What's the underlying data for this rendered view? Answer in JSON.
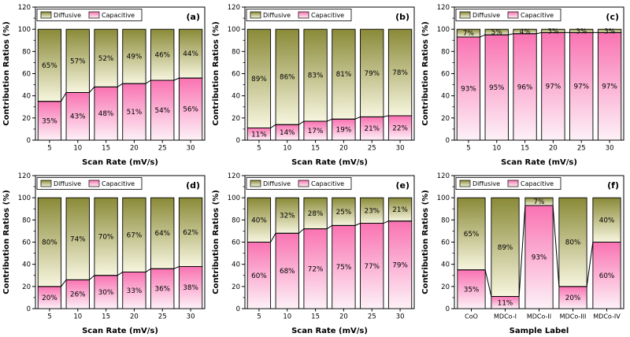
{
  "figure": {
    "ylabel": "Contribution Ratios (%)",
    "yticks": [
      0,
      20,
      40,
      60,
      80,
      100,
      120
    ],
    "legend": [
      {
        "key": "diffusive",
        "label": "Diffusive"
      },
      {
        "key": "capacitive",
        "label": "Capacitive"
      }
    ],
    "colors": {
      "diffusive_top": "#8a8a38",
      "diffusive_bottom": "#f7f6df",
      "capacitive_top": "#f973b2",
      "capacitive_bottom": "#fdf1f7",
      "frame": "#000000"
    }
  },
  "chart_data": [
    {
      "type": "bar",
      "stacked": true,
      "panel_label": "(a)",
      "xlabel": "Scan Rate (mV/s)",
      "ylabel": "Contribution Ratios (%)",
      "ylim": [
        0,
        120
      ],
      "categories": [
        "5",
        "10",
        "15",
        "20",
        "25",
        "30"
      ],
      "series": [
        {
          "name": "Capacitive",
          "values": [
            35,
            43,
            48,
            51,
            54,
            56
          ]
        },
        {
          "name": "Diffusive",
          "values": [
            65,
            57,
            52,
            49,
            46,
            44
          ]
        }
      ],
      "legend_position": "top-left-inside",
      "grid": false
    },
    {
      "type": "bar",
      "stacked": true,
      "panel_label": "(b)",
      "xlabel": "Scan Rate (mV/s)",
      "ylabel": "Contribution Ratios (%)",
      "ylim": [
        0,
        120
      ],
      "categories": [
        "5",
        "10",
        "15",
        "20",
        "25",
        "30"
      ],
      "series": [
        {
          "name": "Capacitive",
          "values": [
            11,
            14,
            17,
            19,
            21,
            22
          ]
        },
        {
          "name": "Diffusive",
          "values": [
            89,
            86,
            83,
            81,
            79,
            78
          ]
        }
      ],
      "legend_position": "top-left-inside",
      "grid": false
    },
    {
      "type": "bar",
      "stacked": true,
      "panel_label": "(c)",
      "xlabel": "Scan Rate (mV/s)",
      "ylabel": "Contribution Ratios (%)",
      "ylim": [
        0,
        120
      ],
      "categories": [
        "5",
        "10",
        "15",
        "20",
        "25",
        "30"
      ],
      "series": [
        {
          "name": "Capacitive",
          "values": [
            93,
            95,
            96,
            97,
            97,
            97
          ]
        },
        {
          "name": "Diffusive",
          "values": [
            7,
            5,
            4,
            3,
            3,
            3
          ]
        }
      ],
      "legend_position": "top-left-inside",
      "grid": false
    },
    {
      "type": "bar",
      "stacked": true,
      "panel_label": "(d)",
      "xlabel": "Scan Rate (mV/s)",
      "ylabel": "Contribution Ratios (%)",
      "ylim": [
        0,
        120
      ],
      "categories": [
        "5",
        "10",
        "15",
        "20",
        "25",
        "30"
      ],
      "series": [
        {
          "name": "Capacitive",
          "values": [
            20,
            26,
            30,
            33,
            36,
            38
          ]
        },
        {
          "name": "Diffusive",
          "values": [
            80,
            74,
            70,
            67,
            64,
            62
          ]
        }
      ],
      "legend_position": "top-left-inside",
      "grid": false
    },
    {
      "type": "bar",
      "stacked": true,
      "panel_label": "(e)",
      "xlabel": "Scan Rate (mV/s)",
      "ylabel": "Contribution Ratios (%)",
      "ylim": [
        0,
        120
      ],
      "categories": [
        "5",
        "10",
        "15",
        "20",
        "25",
        "30"
      ],
      "series": [
        {
          "name": "Capacitive",
          "values": [
            60,
            68,
            72,
            75,
            77,
            79
          ]
        },
        {
          "name": "Diffusive",
          "values": [
            40,
            32,
            28,
            25,
            23,
            21
          ]
        }
      ],
      "legend_position": "top-left-inside",
      "grid": false
    },
    {
      "type": "bar",
      "stacked": true,
      "panel_label": "(f)",
      "xlabel": "Sample Label",
      "ylabel": "Contribution Ratios (%)",
      "ylim": [
        0,
        120
      ],
      "categories": [
        "CoO",
        "MDCo-I",
        "MDCo-II",
        "MDCo-III",
        "MDCo-IV"
      ],
      "series": [
        {
          "name": "Capacitive",
          "values": [
            35,
            11,
            93,
            20,
            60
          ]
        },
        {
          "name": "Diffusive",
          "values": [
            65,
            89,
            7,
            80,
            40
          ]
        }
      ],
      "legend_position": "top-left-inside",
      "grid": false
    }
  ]
}
